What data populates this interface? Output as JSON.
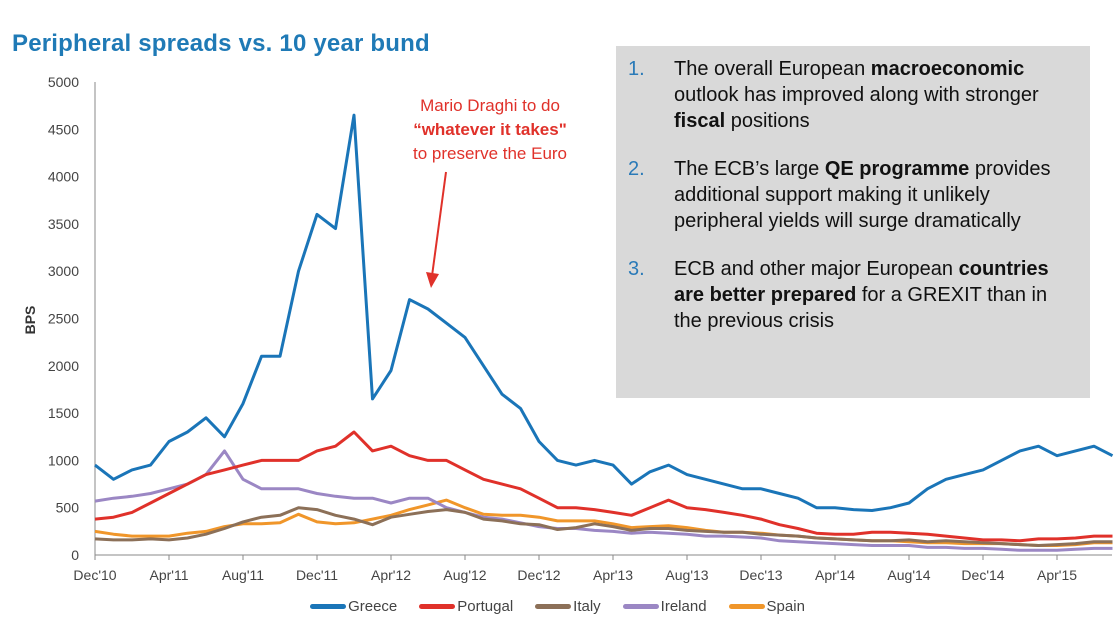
{
  "title": "Peripheral spreads vs. 10 year bund",
  "annotation": {
    "line1": "Mario Draghi to do",
    "line2": "“whatever it takes\"",
    "line3": "to preserve the Euro",
    "color": "#e0312a"
  },
  "points": [
    {
      "num": "1.",
      "parts": [
        {
          "t": "The overall European ",
          "b": false
        },
        {
          "t": "macroeconomic",
          "b": true
        },
        {
          "t": " outlook has improved along with stronger ",
          "b": false
        },
        {
          "t": "fiscal",
          "b": true
        },
        {
          "t": " positions",
          "b": false
        }
      ]
    },
    {
      "num": "2.",
      "parts": [
        {
          "t": "The ECB’s large ",
          "b": false
        },
        {
          "t": "QE programme",
          "b": true
        },
        {
          "t": " provides additional support making it unlikely peripheral yields will surge dramatically",
          "b": false
        }
      ]
    },
    {
      "num": "3.",
      "parts": [
        {
          "t": "ECB and other major European ",
          "b": false
        },
        {
          "t": "countries are better prepared",
          "b": true
        },
        {
          "t": " for a GREXIT than in the previous crisis",
          "b": false
        }
      ]
    }
  ],
  "chart_data": {
    "type": "line",
    "title": "Peripheral spreads vs. 10 year bund",
    "ylabel": "BPS",
    "xlabel": "",
    "ylim": [
      0,
      5000
    ],
    "yticks": [
      0,
      500,
      1000,
      1500,
      2000,
      2500,
      3000,
      3500,
      4000,
      4500,
      5000
    ],
    "xticks": [
      "Dec'10",
      "Apr'11",
      "Aug'11",
      "Dec'11",
      "Apr'12",
      "Aug'12",
      "Dec'12",
      "Apr'13",
      "Aug'13",
      "Dec'13",
      "Apr'14",
      "Aug'14",
      "Dec'14",
      "Apr'15"
    ],
    "x_start": "Dec 2010",
    "x_frequency": "monthly",
    "grid": false,
    "legend": "bottom",
    "series": [
      {
        "name": "Greece",
        "color": "#1a75b8",
        "values": [
          950,
          800,
          900,
          950,
          1200,
          1300,
          1450,
          1250,
          1600,
          2100,
          2100,
          3000,
          3600,
          3450,
          4650,
          1650,
          1950,
          2700,
          2600,
          2450,
          2300,
          2000,
          1700,
          1550,
          1200,
          1000,
          950,
          1000,
          950,
          750,
          880,
          950,
          850,
          800,
          750,
          700,
          700,
          650,
          600,
          500,
          500,
          480,
          470,
          500,
          550,
          700,
          800,
          850,
          900,
          1000,
          1100,
          1150,
          1050,
          1100,
          1150,
          1050
        ]
      },
      {
        "name": "Portugal",
        "color": "#e0312a",
        "values": [
          380,
          400,
          450,
          550,
          650,
          750,
          850,
          900,
          950,
          1000,
          1000,
          1000,
          1100,
          1150,
          1300,
          1100,
          1150,
          1050,
          1000,
          1000,
          900,
          800,
          750,
          700,
          600,
          500,
          500,
          480,
          450,
          420,
          500,
          580,
          500,
          480,
          450,
          420,
          380,
          320,
          280,
          230,
          220,
          220,
          240,
          240,
          230,
          220,
          200,
          180,
          160,
          160,
          150,
          170,
          170,
          180,
          200,
          200
        ]
      },
      {
        "name": "Italy",
        "color": "#8c7058",
        "values": [
          170,
          160,
          160,
          170,
          160,
          180,
          220,
          280,
          350,
          400,
          420,
          500,
          480,
          420,
          380,
          320,
          400,
          430,
          460,
          480,
          450,
          380,
          360,
          330,
          320,
          270,
          290,
          330,
          300,
          260,
          280,
          280,
          260,
          250,
          240,
          240,
          220,
          210,
          200,
          180,
          170,
          160,
          150,
          150,
          160,
          140,
          150,
          140,
          130,
          120,
          110,
          100,
          110,
          120,
          140,
          140
        ]
      },
      {
        "name": "Ireland",
        "color": "#9b87c4",
        "values": [
          570,
          600,
          620,
          650,
          700,
          750,
          850,
          1100,
          800,
          700,
          700,
          700,
          650,
          620,
          600,
          600,
          550,
          600,
          600,
          500,
          450,
          400,
          380,
          340,
          300,
          280,
          280,
          260,
          250,
          230,
          240,
          230,
          220,
          200,
          200,
          190,
          180,
          150,
          140,
          130,
          120,
          110,
          100,
          100,
          100,
          80,
          80,
          70,
          70,
          60,
          50,
          50,
          50,
          60,
          70,
          70
        ]
      },
      {
        "name": "Spain",
        "color": "#f0962a",
        "values": [
          250,
          220,
          200,
          200,
          200,
          230,
          250,
          300,
          330,
          330,
          340,
          430,
          350,
          330,
          340,
          380,
          420,
          480,
          530,
          580,
          500,
          430,
          420,
          420,
          400,
          360,
          360,
          360,
          330,
          290,
          300,
          310,
          290,
          260,
          240,
          240,
          230,
          210,
          200,
          180,
          170,
          160,
          150,
          150,
          140,
          130,
          130,
          120,
          120,
          120,
          110,
          100,
          100,
          110,
          130,
          130
        ]
      }
    ]
  }
}
